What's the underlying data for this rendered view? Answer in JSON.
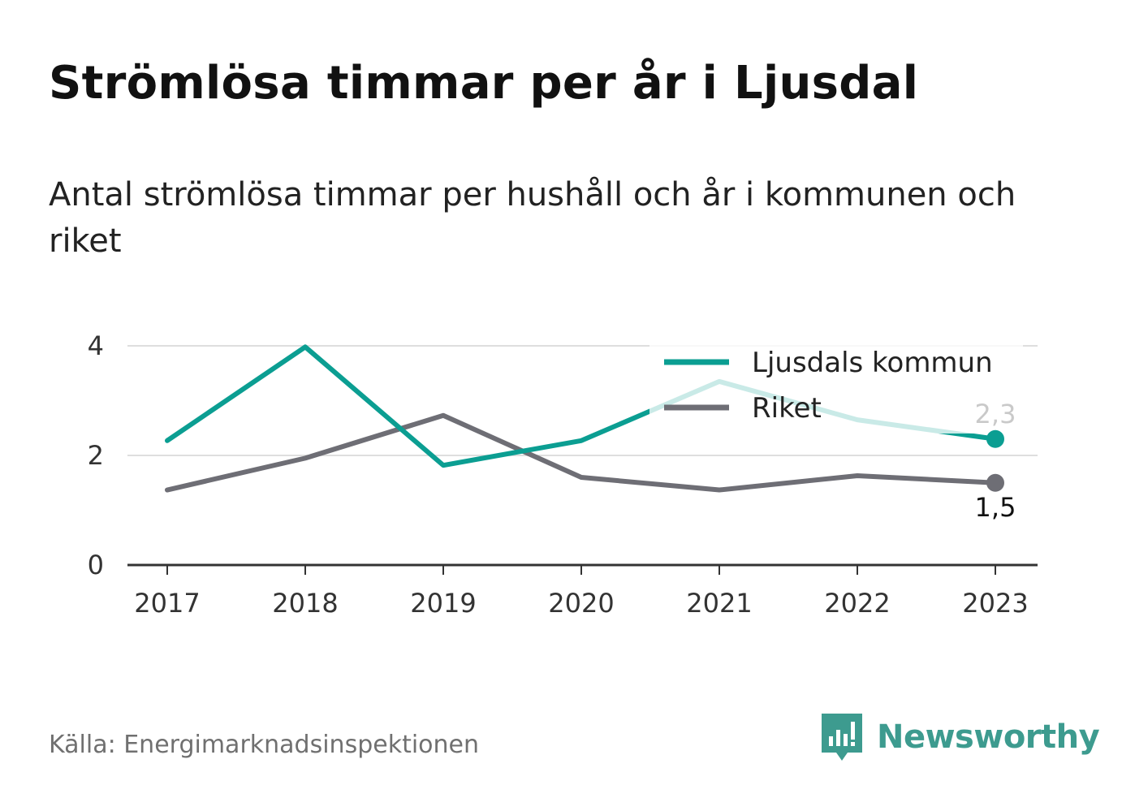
{
  "title": "Strömlösa timmar per år i Ljusdal",
  "subtitle": "Antal strömlösa timmar per hushåll och år i kommunen och riket",
  "source": "Källa: Energimarknadsinspektionen",
  "brand": {
    "name": "Newsworthy",
    "logo_icon": "newsworthy-logo-icon",
    "color": "#3d9b8f"
  },
  "chart_data": {
    "type": "line",
    "x": [
      "2017",
      "2018",
      "2019",
      "2020",
      "2021",
      "2022",
      "2023"
    ],
    "ylim": [
      0,
      4
    ],
    "yticks": [
      "0",
      "2",
      "4"
    ],
    "grid": true,
    "legend": "top-right",
    "series": [
      {
        "name": "Ljusdals kommun",
        "color": "#0b9e92",
        "values": [
          2.27,
          3.98,
          1.82,
          2.27,
          3.35,
          2.65,
          2.3
        ],
        "end_label": "2,3"
      },
      {
        "name": "Riket",
        "color": "#6e6e75",
        "values": [
          1.37,
          1.95,
          2.73,
          1.6,
          1.37,
          1.63,
          1.5
        ],
        "end_label": "1,5"
      }
    ]
  }
}
